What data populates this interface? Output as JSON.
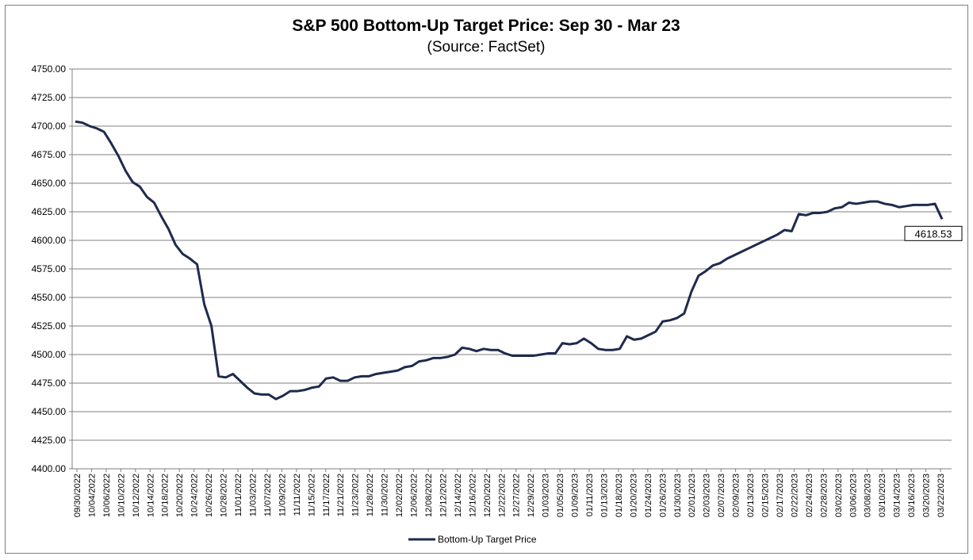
{
  "chart_data": {
    "type": "line",
    "title": "S&P 500 Bottom-Up Target Price: Sep 30 - Mar 23",
    "subtitle": "(Source: FactSet)",
    "xlabel": "",
    "ylabel": "",
    "ylim": [
      4400,
      4750
    ],
    "ystep": 25,
    "grid": true,
    "legend_position": "bottom-center",
    "line_color": "#1f2a4d",
    "x_tick_labels": [
      "09/30/2022",
      "10/04/2022",
      "10/06/2022",
      "10/10/2022",
      "10/12/2022",
      "10/14/2022",
      "10/18/2022",
      "10/20/2022",
      "10/24/2022",
      "10/26/2022",
      "10/28/2022",
      "11/01/2022",
      "11/03/2022",
      "11/07/2022",
      "11/09/2022",
      "11/11/2022",
      "11/15/2022",
      "11/17/2022",
      "11/21/2022",
      "11/23/2022",
      "11/28/2022",
      "11/30/2022",
      "12/02/2022",
      "12/06/2022",
      "12/08/2022",
      "12/12/2022",
      "12/14/2022",
      "12/16/2022",
      "12/20/2022",
      "12/22/2022",
      "12/27/2022",
      "12/29/2022",
      "01/03/2023",
      "01/05/2023",
      "01/09/2023",
      "01/11/2023",
      "01/13/2023",
      "01/18/2023",
      "01/20/2023",
      "01/24/2023",
      "01/26/2023",
      "01/30/2023",
      "02/01/2023",
      "02/03/2023",
      "02/07/2023",
      "02/09/2023",
      "02/13/2023",
      "02/15/2023",
      "02/17/2023",
      "02/22/2023",
      "02/24/2023",
      "02/28/2023",
      "03/02/2023",
      "03/06/2023",
      "03/08/2023",
      "03/10/2023",
      "03/14/2023",
      "03/16/2023",
      "03/20/2023",
      "03/22/2023"
    ],
    "series": [
      {
        "name": "Bottom-Up Target Price",
        "values": [
          4704,
          4703,
          4700,
          4698,
          4695,
          4685,
          4674,
          4661,
          4651,
          4647,
          4638,
          4633,
          4621,
          4610,
          4596,
          4588,
          4584,
          4579,
          4544,
          4525,
          4481,
          4480,
          4483,
          4477,
          4471,
          4466,
          4465,
          4465,
          4461,
          4464,
          4468,
          4468,
          4469,
          4471,
          4472,
          4479,
          4480,
          4477,
          4477,
          4480,
          4481,
          4481,
          4483,
          4484,
          4485,
          4486,
          4489,
          4490,
          4494,
          4495,
          4497,
          4497,
          4498,
          4500,
          4506,
          4505,
          4503,
          4505,
          4504,
          4504,
          4501,
          4499,
          4499,
          4499,
          4499,
          4500,
          4501,
          4501,
          4510,
          4509,
          4510,
          4514,
          4510,
          4505,
          4504,
          4504,
          4505,
          4516,
          4513,
          4514,
          4517,
          4520,
          4529,
          4530,
          4532,
          4536,
          4555,
          4569,
          4573,
          4578,
          4580,
          4584,
          4587,
          4590,
          4593,
          4596,
          4599,
          4602,
          4605,
          4609,
          4608,
          4623,
          4622,
          4624,
          4624,
          4625,
          4628,
          4629,
          4633,
          4632,
          4633,
          4634,
          4634,
          4632,
          4631,
          4629,
          4630,
          4631,
          4631,
          4631,
          4632,
          4618.53
        ]
      }
    ],
    "callout": "4618.53"
  }
}
